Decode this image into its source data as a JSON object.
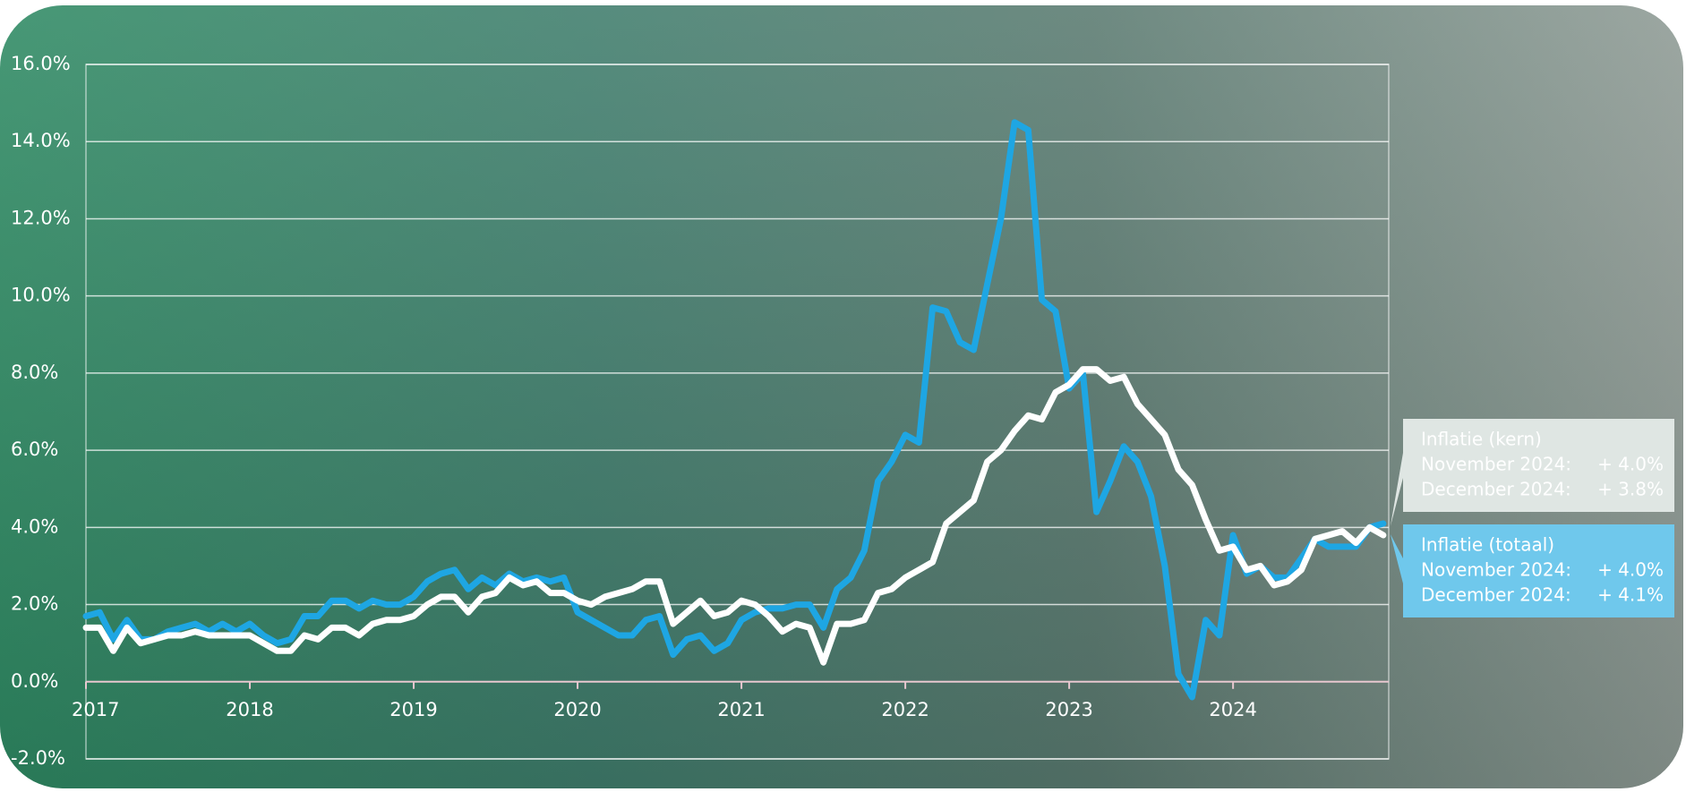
{
  "chart_data": {
    "type": "line",
    "categories": [
      "2017",
      null,
      null,
      null,
      null,
      null,
      null,
      null,
      null,
      null,
      null,
      null,
      "2018",
      null,
      null,
      null,
      null,
      null,
      null,
      null,
      null,
      null,
      null,
      null,
      "2019",
      null,
      null,
      null,
      null,
      null,
      null,
      null,
      null,
      null,
      null,
      null,
      "2020",
      null,
      null,
      null,
      null,
      null,
      null,
      null,
      null,
      null,
      null,
      null,
      "2021",
      null,
      null,
      null,
      null,
      null,
      null,
      null,
      null,
      null,
      null,
      null,
      "2022",
      null,
      null,
      null,
      null,
      null,
      null,
      null,
      null,
      null,
      null,
      null,
      "2023",
      null,
      null,
      null,
      null,
      null,
      null,
      null,
      null,
      null,
      null,
      null,
      "2024",
      null,
      null,
      null,
      null,
      null,
      null,
      null,
      null,
      null,
      null,
      null
    ],
    "series": [
      {
        "name": "Inflatie (totaal)",
        "color": "#1ea6e3",
        "values": [
          1.7,
          1.8,
          1.1,
          1.6,
          1.1,
          1.1,
          1.3,
          1.4,
          1.5,
          1.3,
          1.5,
          1.3,
          1.5,
          1.2,
          1.0,
          1.1,
          1.7,
          1.7,
          2.1,
          2.1,
          1.9,
          2.1,
          2.0,
          2.0,
          2.2,
          2.6,
          2.8,
          2.9,
          2.4,
          2.7,
          2.5,
          2.8,
          2.6,
          2.7,
          2.6,
          2.7,
          1.8,
          1.6,
          1.4,
          1.2,
          1.2,
          1.6,
          1.7,
          0.7,
          1.1,
          1.2,
          0.8,
          1.0,
          1.6,
          1.8,
          1.9,
          1.9,
          2.0,
          2.0,
          1.4,
          2.4,
          2.7,
          3.4,
          5.2,
          5.7,
          6.4,
          6.2,
          9.7,
          9.6,
          8.8,
          8.6,
          10.3,
          12.0,
          14.5,
          14.3,
          9.9,
          9.6,
          7.6,
          8.0,
          4.4,
          5.2,
          6.1,
          5.7,
          4.8,
          3.0,
          0.2,
          -0.4,
          1.6,
          1.2,
          3.8,
          2.8,
          3.0,
          2.7,
          2.7,
          3.2,
          3.7,
          3.5,
          3.5,
          3.5,
          4.0,
          4.1
        ],
        "callout": {
          "rows": [
            {
              "label": "November 2024:",
              "value": "+ 4.0%"
            },
            {
              "label": "December 2024:",
              "value": "+ 4.1%"
            }
          ]
        }
      },
      {
        "name": "Inflatie (kern)",
        "color": "#ffffff",
        "values": [
          1.4,
          1.4,
          0.8,
          1.4,
          1.0,
          1.1,
          1.2,
          1.2,
          1.3,
          1.2,
          1.2,
          1.2,
          1.2,
          1.0,
          0.8,
          0.8,
          1.2,
          1.1,
          1.4,
          1.4,
          1.2,
          1.5,
          1.6,
          1.6,
          1.7,
          2.0,
          2.2,
          2.2,
          1.8,
          2.2,
          2.3,
          2.7,
          2.5,
          2.6,
          2.3,
          2.3,
          2.1,
          2.0,
          2.2,
          2.3,
          2.4,
          2.6,
          2.6,
          1.5,
          1.8,
          2.1,
          1.7,
          1.8,
          2.1,
          2.0,
          1.7,
          1.3,
          1.5,
          1.4,
          0.5,
          1.5,
          1.5,
          1.6,
          2.3,
          2.4,
          2.7,
          2.9,
          3.1,
          4.1,
          4.4,
          4.7,
          5.7,
          6.0,
          6.5,
          6.9,
          6.8,
          7.5,
          7.7,
          8.1,
          8.1,
          7.8,
          7.9,
          7.2,
          6.8,
          6.4,
          5.5,
          5.1,
          4.2,
          3.4,
          3.5,
          2.9,
          3.0,
          2.5,
          2.6,
          2.9,
          3.7,
          3.8,
          3.9,
          3.6,
          4.0,
          3.8
        ],
        "callout": {
          "rows": [
            {
              "label": "November 2024:",
              "value": "+ 4.0%"
            },
            {
              "label": "December 2024:",
              "value": "+ 3.8%"
            }
          ]
        }
      }
    ],
    "ylim": [
      -2,
      16
    ],
    "yticks": [
      {
        "value": -2,
        "label": "-2.0%"
      },
      {
        "value": 0,
        "label": "0.0%"
      },
      {
        "value": 2,
        "label": "2.0%"
      },
      {
        "value": 4,
        "label": "4.0%"
      },
      {
        "value": 6,
        "label": "6.0%"
      },
      {
        "value": 8,
        "label": "8.0%"
      },
      {
        "value": 10,
        "label": "10.0%"
      },
      {
        "value": 12,
        "label": "12.0%"
      },
      {
        "value": 14,
        "label": "14.0%"
      },
      {
        "value": 16,
        "label": "16.0%"
      }
    ],
    "grid": true
  }
}
